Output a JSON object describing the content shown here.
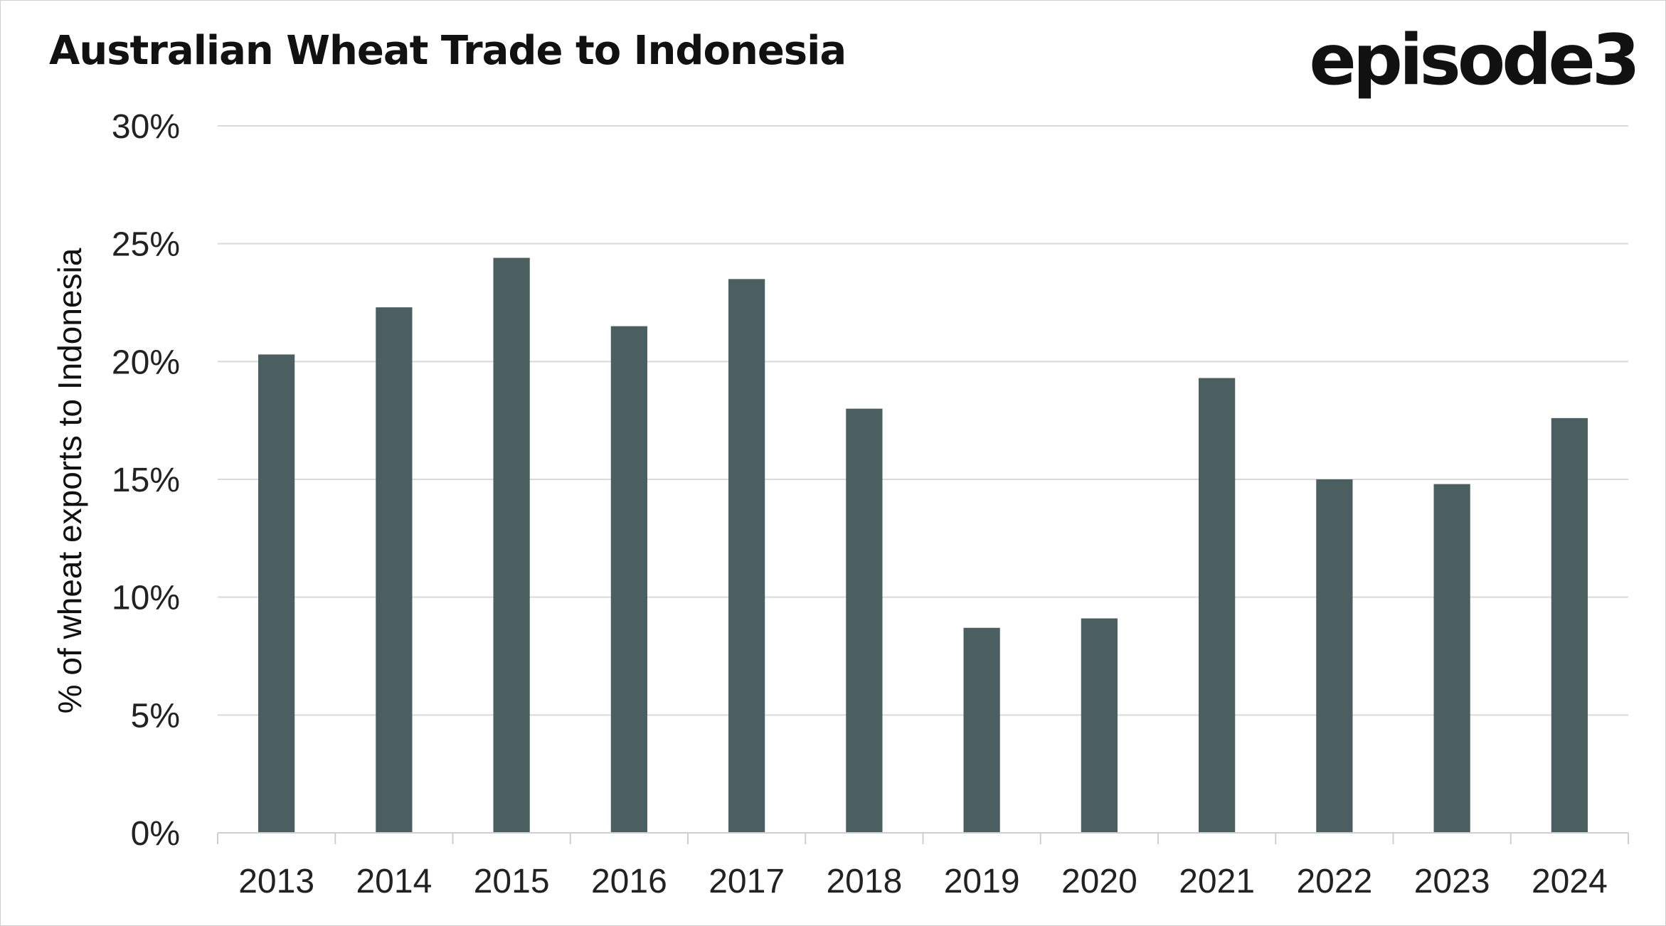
{
  "chart_data": {
    "type": "bar",
    "title": "Australian Wheat Trade to Indonesia",
    "ylabel": "% of wheat exports to Indonesia",
    "xlabel": "",
    "categories": [
      "2013",
      "2014",
      "2015",
      "2016",
      "2017",
      "2018",
      "2019",
      "2020",
      "2021",
      "2022",
      "2023",
      "2024"
    ],
    "values": [
      20.3,
      22.3,
      24.4,
      21.5,
      23.5,
      18.0,
      8.7,
      9.1,
      19.3,
      15.0,
      14.8,
      17.6
    ],
    "ylim": [
      0,
      30
    ],
    "yticks": [
      0,
      5,
      10,
      15,
      20,
      25,
      30
    ],
    "ytick_labels": [
      "0%",
      "5%",
      "10%",
      "15%",
      "20%",
      "25%",
      "30%"
    ],
    "grid": true,
    "legend": "none",
    "bar_color": "#4b5e60"
  },
  "brand": {
    "logo_text": "episode3"
  }
}
